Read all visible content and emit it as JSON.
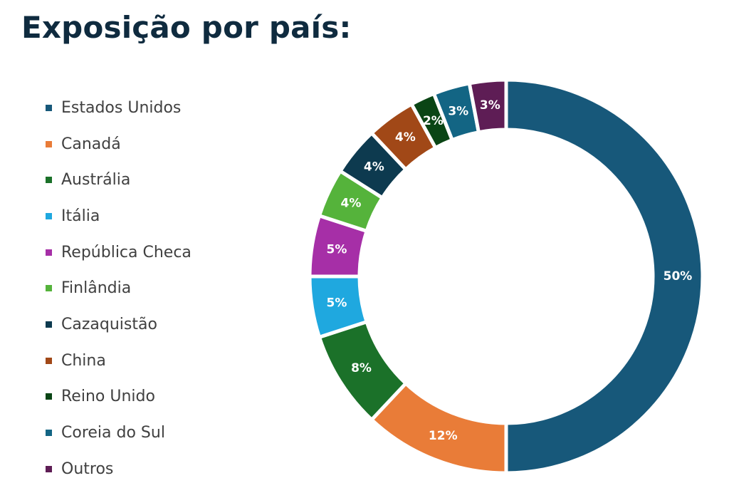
{
  "chart_data": {
    "type": "pie",
    "style": "donut",
    "title": "Exposição por país:",
    "legend_position": "left",
    "categories": [
      "Estados Unidos",
      "Canadá",
      "Austrália",
      "Itália",
      "República Checa",
      "Finlândia",
      "Cazaquistão",
      "China",
      "Reino Unido",
      "Coreia do Sul",
      "Outros"
    ],
    "values": [
      50,
      12,
      8,
      5,
      5,
      4,
      4,
      4,
      2,
      3,
      3
    ],
    "labels": [
      "50%",
      "12%",
      "8%",
      "5%",
      "5%",
      "4%",
      "4%",
      "4%",
      "2%",
      "3%",
      "3%"
    ],
    "colors": [
      "#17587a",
      "#e97c38",
      "#1b7129",
      "#1fa8df",
      "#a62fa7",
      "#55b33b",
      "#0d3a4f",
      "#a14817",
      "#0a4515",
      "#136584",
      "#5e1d55"
    ]
  }
}
